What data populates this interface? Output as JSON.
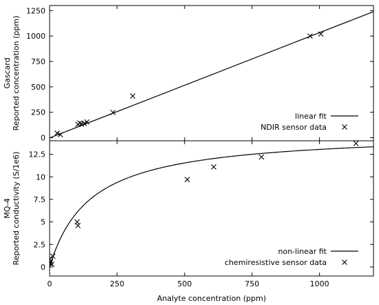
{
  "chart_data": [
    {
      "type": "scatter",
      "xlim": [
        0,
        1200
      ],
      "ylim": [
        -30,
        1300
      ],
      "x_ticks": [
        "0",
        "250",
        "500",
        "750",
        "1000"
      ],
      "y_ticks": [
        "0",
        "250",
        "500",
        "750",
        "1000",
        "1250"
      ],
      "ylabel_lines": [
        "Gascard",
        "Reported concentration (ppm)"
      ],
      "legend_position": "bottom-right",
      "grid": false,
      "series": [
        {
          "name": "linear fit",
          "kind": "line",
          "x": [
            0,
            1200
          ],
          "y": [
            -2,
            1240
          ]
        },
        {
          "name": "NDIR sensor data",
          "kind": "points",
          "marker": "x",
          "x": [
            28,
            40,
            105,
            112,
            118,
            128,
            138,
            235,
            308,
            965,
            1005
          ],
          "y": [
            45,
            30,
            130,
            145,
            135,
            140,
            155,
            248,
            410,
            1000,
            1020
          ]
        }
      ]
    },
    {
      "type": "scatter",
      "xlim": [
        0,
        1200
      ],
      "ylim": [
        -1,
        14
      ],
      "x_ticks": [
        "0",
        "250",
        "500",
        "750",
        "1000"
      ],
      "y_ticks": [
        "0",
        "2.5",
        "5",
        "7.5",
        "10",
        "12.5"
      ],
      "ylabel_lines": [
        "MQ-4",
        "Reported conductivity (S/1e6)"
      ],
      "xlabel": "Analyte concentration (ppm)",
      "legend_position": "bottom-right",
      "grid": false,
      "series": [
        {
          "name": "non-linear fit",
          "kind": "curve",
          "model": {
            "vmax": 15.0,
            "k": 150,
            "x_from": 0,
            "x_to": 1200
          }
        },
        {
          "name": "chemiresistive sensor data",
          "kind": "points",
          "marker": "x",
          "x": [
            0,
            2,
            4,
            8,
            12,
            102,
            105,
            510,
            608,
            785,
            1135
          ],
          "y": [
            0.9,
            0.4,
            0.6,
            0.3,
            1.2,
            5.0,
            4.6,
            9.7,
            11.1,
            12.2,
            13.7
          ]
        }
      ]
    }
  ]
}
